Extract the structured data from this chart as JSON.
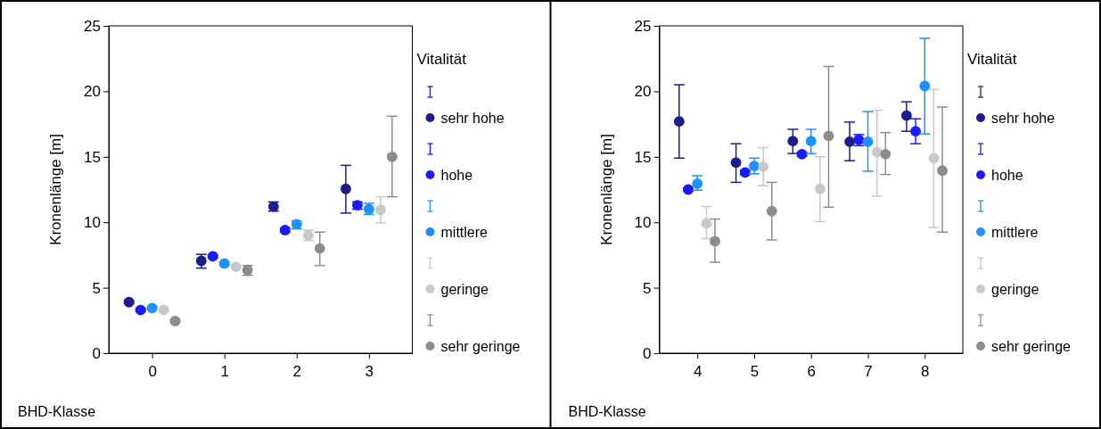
{
  "chart_data": [
    {
      "type": "scatter",
      "xlabel": "BHD-Klasse",
      "ylabel": "Kronenlänge [m]",
      "legend_title": "Vitalität",
      "legend": "right",
      "marker": "circle",
      "grid": false,
      "xlim": [
        -0.6,
        3.6
      ],
      "xticks": [
        0,
        1,
        2,
        3
      ],
      "ylim": [
        0,
        25
      ],
      "yticks": [
        0,
        5,
        10,
        15,
        20,
        25
      ],
      "series": [
        {
          "name": "sehr hohe",
          "color": "#1c1c8a",
          "x": [
            -0.32,
            0.68,
            1.68,
            2.68
          ],
          "values": [
            3.9,
            7.05,
            11.2,
            12.55
          ],
          "errors": [
            [
              3.8,
              4.0
            ],
            [
              6.5,
              7.55
            ],
            [
              10.85,
              11.55
            ],
            [
              10.7,
              14.35
            ]
          ]
        },
        {
          "name": "hohe",
          "color": "#1a1aff",
          "x": [
            -0.16,
            0.84,
            1.84,
            2.84
          ],
          "values": [
            3.3,
            7.4,
            9.4,
            11.3
          ],
          "errors": [
            [
              3.2,
              3.4
            ],
            [
              7.3,
              7.5
            ],
            [
              9.25,
              9.55
            ],
            [
              11.0,
              11.55
            ]
          ]
        },
        {
          "name": "mittlere",
          "color": "#1e90ff",
          "x": [
            0,
            1,
            2,
            3
          ],
          "values": [
            3.45,
            6.85,
            9.85,
            11.0
          ],
          "errors": [
            [
              3.35,
              3.55
            ],
            [
              6.75,
              6.95
            ],
            [
              9.5,
              10.1
            ],
            [
              10.6,
              11.45
            ]
          ]
        },
        {
          "name": "geringe",
          "color": "#c8c8c8",
          "x": [
            0.16,
            1.16,
            2.16,
            3.16
          ],
          "values": [
            3.3,
            6.6,
            9.0,
            10.95
          ],
          "errors": [
            [
              3.2,
              3.4
            ],
            [
              6.5,
              6.7
            ],
            [
              8.6,
              9.4
            ],
            [
              9.95,
              11.95
            ]
          ]
        },
        {
          "name": "sehr geringe",
          "color": "#8c8c8c",
          "x": [
            0.32,
            1.32,
            2.32,
            3.32
          ],
          "values": [
            2.45,
            6.35,
            8.0,
            15.0
          ],
          "errors": [
            [
              2.35,
              2.55
            ],
            [
              5.95,
              6.7
            ],
            [
              6.7,
              9.25
            ],
            [
              11.95,
              18.1
            ]
          ]
        }
      ]
    },
    {
      "type": "scatter",
      "xlabel": "BHD-Klasse",
      "ylabel": "Kronenlänge [m]",
      "legend_title": "Vitalität",
      "legend": "right",
      "marker": "circle",
      "grid": false,
      "xlim": [
        3.33,
        8.67
      ],
      "xticks": [
        4,
        5,
        6,
        7,
        8
      ],
      "ylim": [
        0,
        25
      ],
      "yticks": [
        0,
        5,
        10,
        15,
        20,
        25
      ],
      "series": [
        {
          "name": "sehr hohe",
          "color": "#1c1c8a",
          "x": [
            3.68,
            4.68,
            5.68,
            6.68,
            7.68
          ],
          "values": [
            17.7,
            14.55,
            16.2,
            16.15,
            18.15
          ],
          "errors": [
            [
              14.9,
              20.5
            ],
            [
              13.05,
              16.0
            ],
            [
              15.25,
              17.1
            ],
            [
              14.7,
              17.65
            ],
            [
              16.95,
              19.2
            ]
          ]
        },
        {
          "name": "hohe",
          "color": "#1a1aff",
          "x": [
            3.84,
            4.84,
            5.84,
            6.84,
            7.84
          ],
          "values": [
            12.5,
            13.8,
            15.2,
            16.3,
            16.95
          ],
          "errors": [
            [
              12.4,
              12.6
            ],
            [
              13.65,
              13.95
            ],
            [
              15.05,
              15.35
            ],
            [
              15.85,
              16.7
            ],
            [
              16.0,
              17.9
            ]
          ]
        },
        {
          "name": "mittlere",
          "color": "#1e90ff",
          "x": [
            4,
            5,
            6,
            7,
            8
          ],
          "values": [
            12.95,
            14.3,
            16.2,
            16.15,
            20.4
          ],
          "errors": [
            [
              12.45,
              13.55
            ],
            [
              13.7,
              14.9
            ],
            [
              15.25,
              17.1
            ],
            [
              13.9,
              18.45
            ],
            [
              16.75,
              24.05
            ]
          ]
        },
        {
          "name": "geringe",
          "color": "#c8c8c8",
          "x": [
            4.16,
            5.16,
            6.16,
            7.16,
            8.16
          ],
          "values": [
            9.9,
            14.25,
            12.55,
            15.35,
            14.9
          ],
          "errors": [
            [
              8.75,
              11.2
            ],
            [
              12.8,
              15.7
            ],
            [
              10.05,
              15.0
            ],
            [
              12.0,
              18.55
            ],
            [
              9.6,
              20.15
            ]
          ]
        },
        {
          "name": "sehr geringe",
          "color": "#8c8c8c",
          "x": [
            4.31,
            5.31,
            6.31,
            7.31,
            8.31
          ],
          "values": [
            8.55,
            10.85,
            16.6,
            15.2,
            13.95
          ],
          "errors": [
            [
              6.95,
              10.25
            ],
            [
              8.65,
              13.05
            ],
            [
              11.15,
              21.9
            ],
            [
              13.65,
              16.85
            ],
            [
              9.25,
              18.8
            ]
          ]
        }
      ]
    }
  ]
}
